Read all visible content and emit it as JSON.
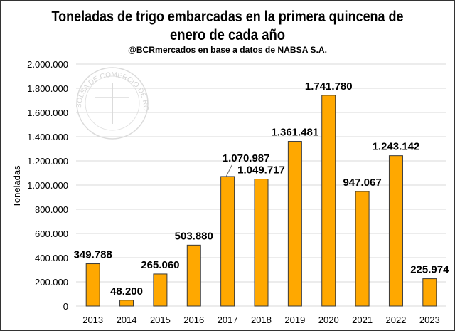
{
  "chart_data": {
    "type": "bar",
    "title": "Toneladas de trigo embarcadas en la primera quincena de enero de cada año",
    "title_lines": [
      "Toneladas de trigo embarcadas en la primera quincena de",
      "enero de cada año"
    ],
    "subtitle": "@BCRmercados  en base a datos de NABSA S.A.",
    "xlabel": "",
    "ylabel": "Toneladas",
    "categories": [
      "2013",
      "2014",
      "2015",
      "2016",
      "2017",
      "2018",
      "2019",
      "2020",
      "2021",
      "2022",
      "2023"
    ],
    "values": [
      349788,
      48200,
      265060,
      503880,
      1070987,
      1049717,
      1361481,
      1741780,
      947067,
      1243142,
      225974
    ],
    "data_labels": [
      "349.788",
      "48.200",
      "265.060",
      "503.880",
      "1.070.987",
      "1.049.717",
      "1.361.481",
      "1.741.780",
      "947.067",
      "1.243.142",
      "225.974"
    ],
    "ylim": [
      0,
      2000000
    ],
    "yticks": [
      0,
      200000,
      400000,
      600000,
      800000,
      1000000,
      1200000,
      1400000,
      1600000,
      1800000,
      2000000
    ],
    "ytick_labels": [
      "0",
      "200.000",
      "400.000",
      "600.000",
      "800.000",
      "1.000.000",
      "1.200.000",
      "1.400.000",
      "1.600.000",
      "1.800.000",
      "2.000.000"
    ],
    "grid": true,
    "legend": "none",
    "bar_color": "#FFA800",
    "bar_edge_color": "#3a3a3a",
    "watermark": "BOLSA DE COMERCIO DE ROSARIO"
  }
}
